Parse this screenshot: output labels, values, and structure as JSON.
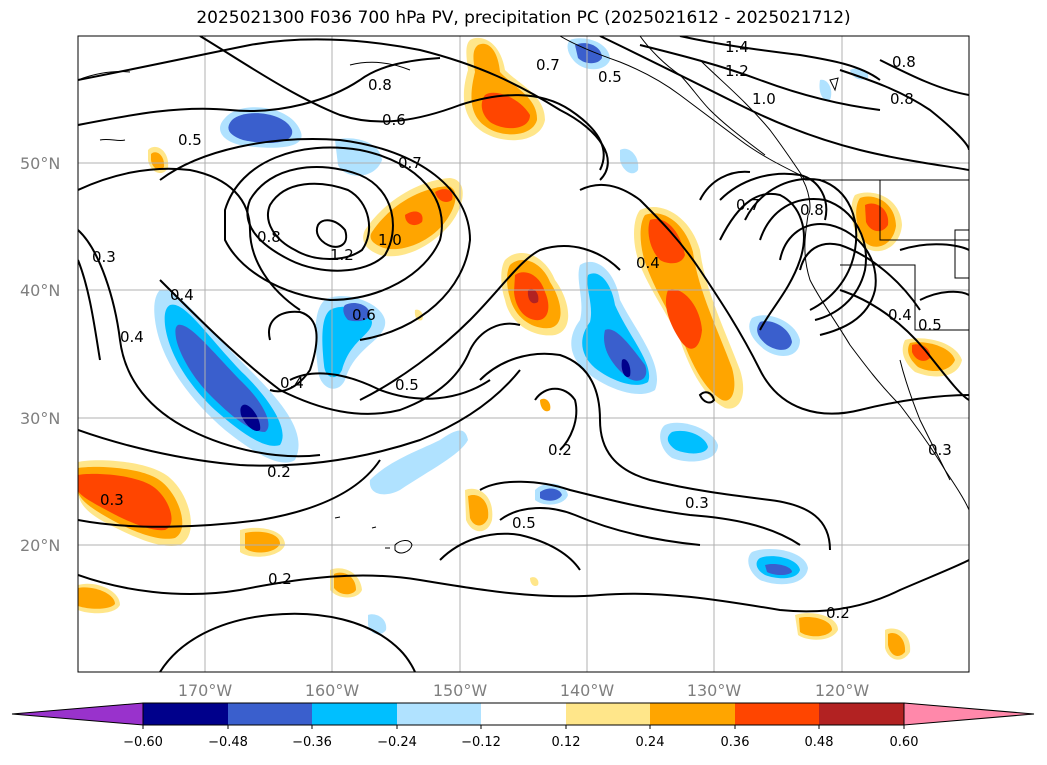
{
  "title": "2025021300 F036 700 hPa PV, precipitation PC (2025021612 - 2025021712)",
  "map": {
    "lat_labels": [
      "50°N",
      "40°N",
      "30°N",
      "20°N"
    ],
    "lon_labels": [
      "170°W",
      "160°W",
      "150°W",
      "140°W",
      "130°W",
      "120°W"
    ],
    "contour_labels": [
      "0.5",
      "0.8",
      "0.6",
      "0.7",
      "0.7",
      "0.5",
      "1.4",
      "1.2",
      "1.0",
      "0.8",
      "0.8",
      "0.3",
      "0.4",
      "0.8",
      "1.2",
      "1.0",
      "0.4",
      "0.6",
      "0.4",
      "0.5",
      "0.2",
      "0.3",
      "0.2",
      "0.4",
      "0.5",
      "0.3",
      "0.2",
      "0.7",
      "0.8",
      "0.4",
      "0.5",
      "0.3",
      "0.2"
    ],
    "land_color": "#ffffff",
    "coast_color": "#000000",
    "grid_color": "#b0b0b0"
  },
  "colorbar": {
    "labels": [
      "−0.60",
      "−0.48",
      "−0.36",
      "−0.24",
      "−0.12",
      "0.12",
      "0.24",
      "0.36",
      "0.48",
      "0.60"
    ],
    "colors": [
      "#9932cc",
      "#00008b",
      "#3a5fcd",
      "#00bfff",
      "#b0e2ff",
      "#ffffff",
      "#ffe68a",
      "#ffa500",
      "#ff4500",
      "#b22222",
      "#ff88aa"
    ]
  },
  "chart_data": {
    "type": "map-contour",
    "title": "2025021300 F036 700 hPa PV, precipitation PC (2025021612 - 2025021712)",
    "lat_range": [
      10,
      60
    ],
    "lon_range": [
      -180,
      -110
    ],
    "shading_levels": [
      -0.6,
      -0.48,
      -0.36,
      -0.24,
      -0.12,
      0.12,
      0.24,
      0.36,
      0.48,
      0.6
    ],
    "contour_levels": [
      0.2,
      0.3,
      0.4,
      0.5,
      0.6,
      0.7,
      0.8,
      1.0,
      1.2,
      1.4
    ]
  }
}
